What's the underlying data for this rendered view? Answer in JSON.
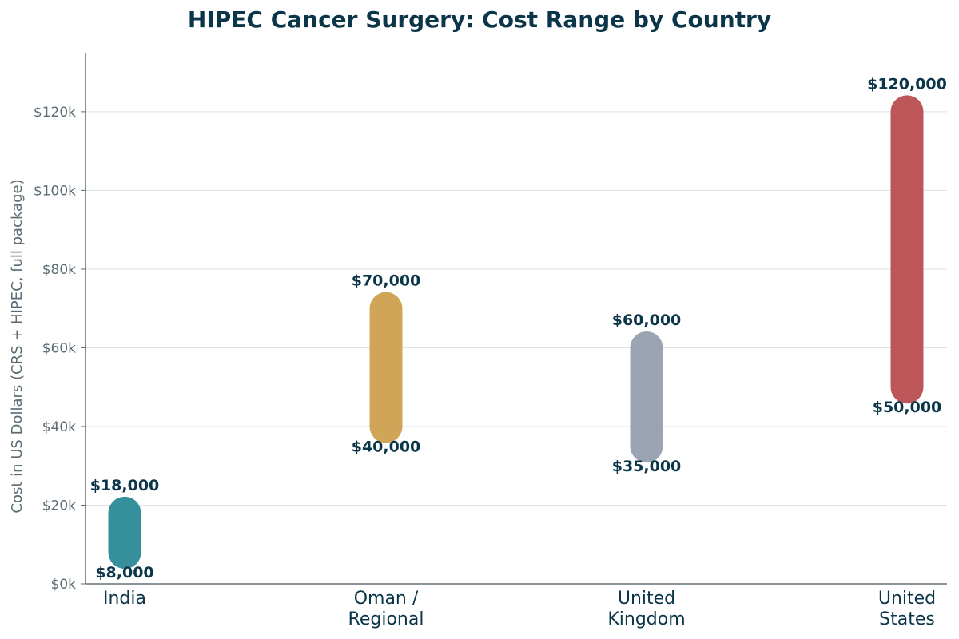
{
  "title": "HIPEC Cancer Surgery: Cost Range by Country",
  "chart_data": {
    "type": "range-bar",
    "title": "HIPEC Cancer Surgery: Cost Range by Country",
    "xlabel": "",
    "ylabel": "Cost in US Dollars (CRS + HIPEC, full package)",
    "ylim": [
      0,
      135000
    ],
    "yticks": [
      0,
      20000,
      40000,
      60000,
      80000,
      100000,
      120000
    ],
    "ytick_labels": [
      "$0k",
      "$20k",
      "$40k",
      "$60k",
      "$80k",
      "$100k",
      "$120k"
    ],
    "grid": "horizontal",
    "categories": [
      {
        "lines": [
          "India"
        ],
        "low": 8000,
        "high": 18000,
        "low_label": "$8,000",
        "high_label": "$18,000",
        "color": "#2a8a96"
      },
      {
        "lines": [
          "Oman /",
          "Regional"
        ],
        "low": 40000,
        "high": 70000,
        "low_label": "$40,000",
        "high_label": "$70,000",
        "color": "#cfa04f"
      },
      {
        "lines": [
          "United",
          "Kingdom"
        ],
        "low": 35000,
        "high": 60000,
        "low_label": "$35,000",
        "high_label": "$60,000",
        "color": "#959fae"
      },
      {
        "lines": [
          "United",
          "States"
        ],
        "low": 50000,
        "high": 120000,
        "low_label": "$50,000",
        "high_label": "$120,000",
        "color": "#b84d4f"
      }
    ]
  }
}
